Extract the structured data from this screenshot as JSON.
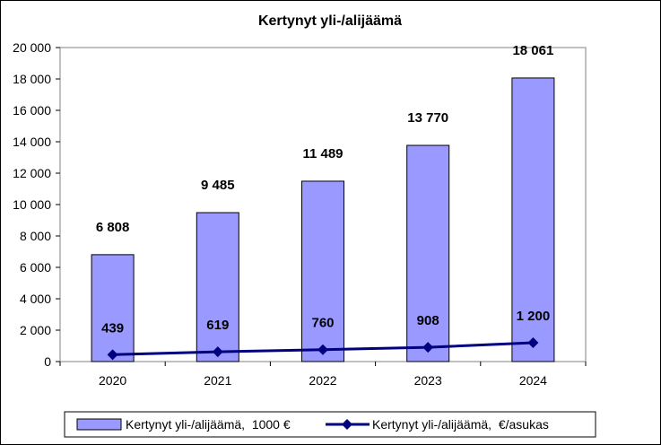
{
  "chart_data": {
    "type": "bar",
    "title": "Kertynyt yli-/alijäämä",
    "categories": [
      "2020",
      "2021",
      "2022",
      "2023",
      "2024"
    ],
    "ylim": [
      0,
      20000
    ],
    "yticks": [
      "0",
      "2 000",
      "4 000",
      "6 000",
      "8 000",
      "10 000",
      "12 000",
      "14 000",
      "16 000",
      "18 000",
      "20 000"
    ],
    "grid": false,
    "legend_position": "bottom",
    "series": [
      {
        "name": "Kertynyt yli-/alijäämä,  1000 €",
        "type": "bar",
        "values": [
          6808,
          9485,
          11489,
          13770,
          18061
        ],
        "labels": [
          "6 808",
          "9 485",
          "11 489",
          "13 770",
          "18 061"
        ],
        "color": "#9999FF"
      },
      {
        "name": "Kertynyt yli-/alijäämä,  €/asukas",
        "type": "line",
        "values": [
          439,
          619,
          760,
          908,
          1200
        ],
        "labels": [
          "439",
          "619",
          "760",
          "908",
          "1 200"
        ],
        "color": "#000080"
      }
    ]
  }
}
